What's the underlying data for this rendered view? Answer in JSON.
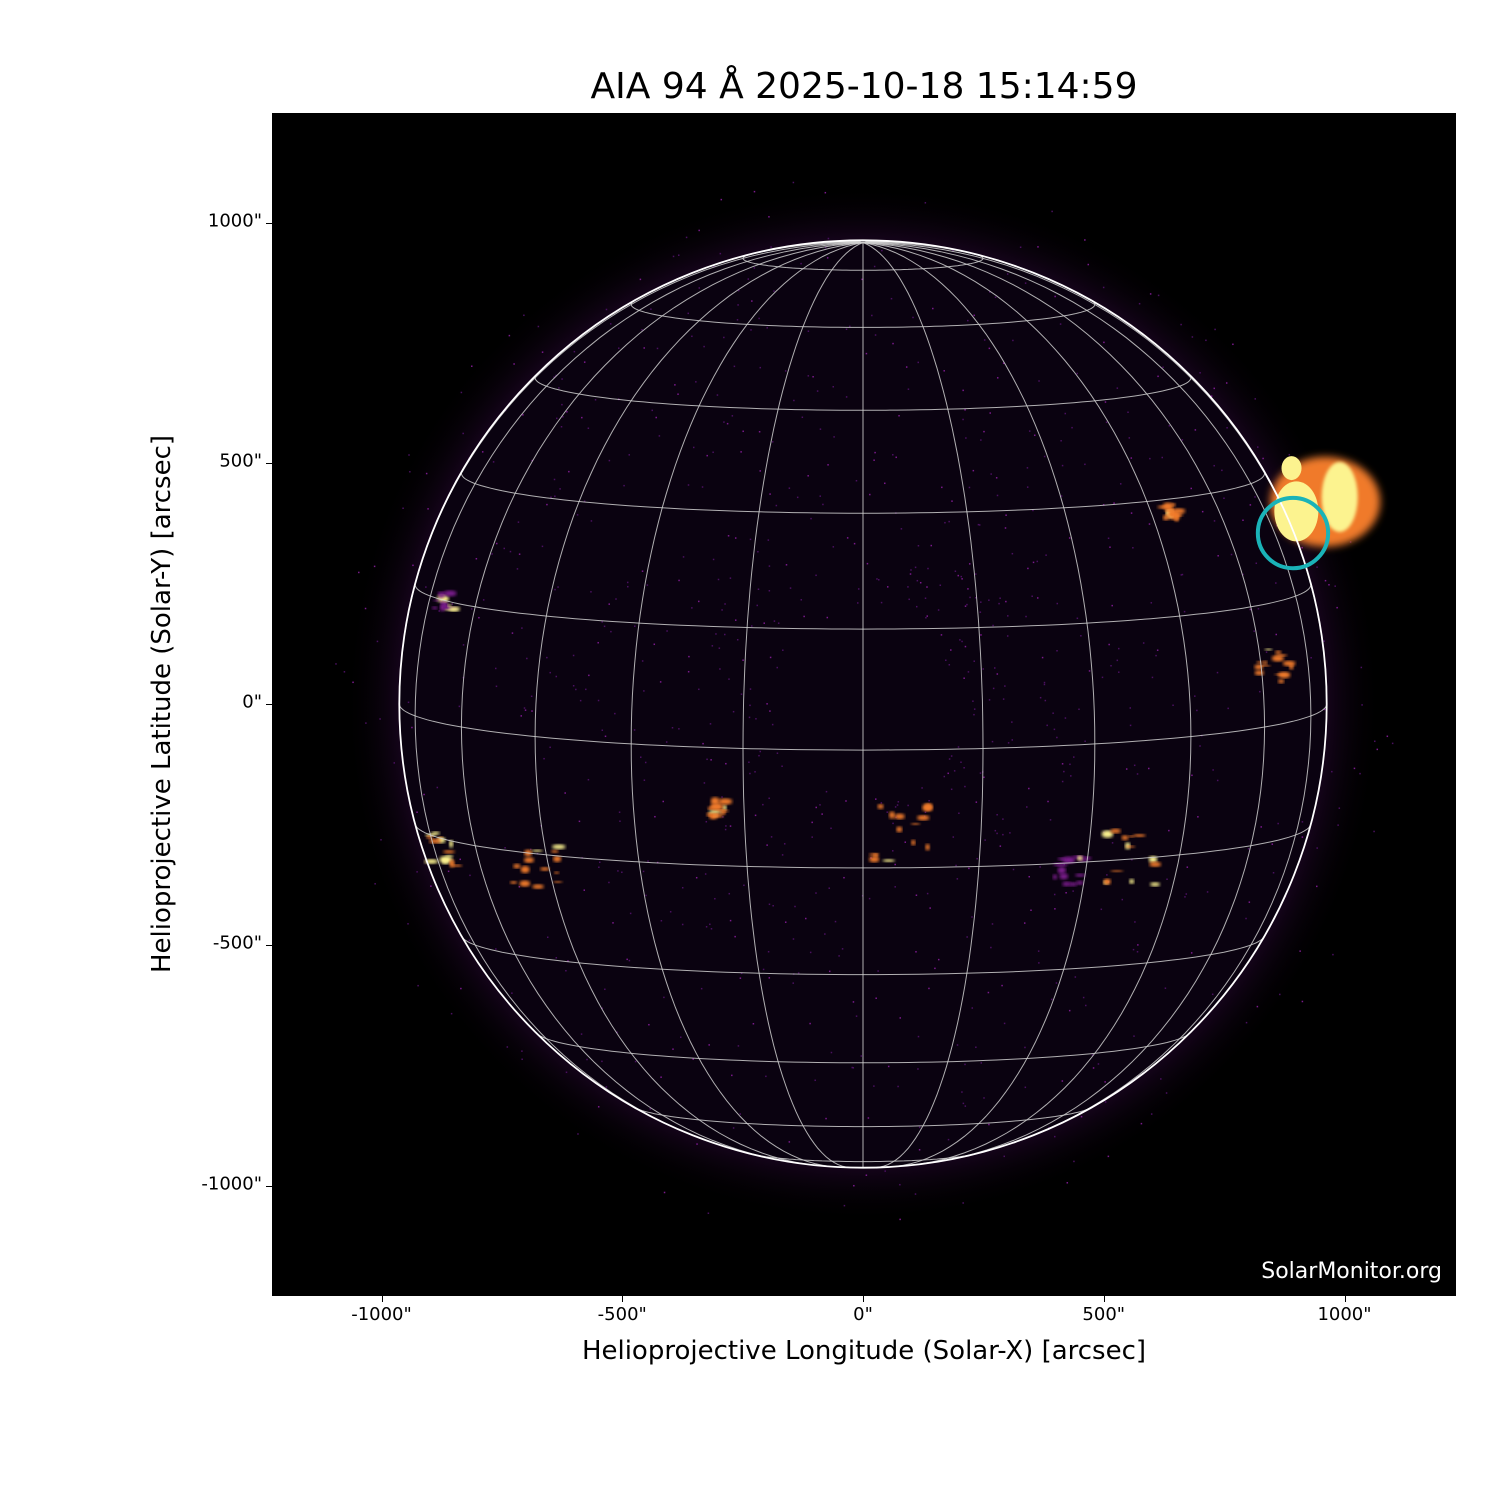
{
  "title": "AIA 94 Å 2025-10-18 15:14:59",
  "watermark": "SolarMonitor.org",
  "x_axis": {
    "label": "Helioprojective Longitude (Solar-X) [arcsec]",
    "ticks": [
      "-1000\"",
      "-500\"",
      "0\"",
      "500\"",
      "1000\""
    ],
    "tick_values": [
      -1000,
      -500,
      0,
      500,
      1000
    ],
    "range": [
      -1230,
      1230
    ]
  },
  "y_axis": {
    "label": "Helioprojective Latitude (Solar-Y) [arcsec]",
    "ticks": [
      "1000\"",
      "500\"",
      "0\"",
      "-500\"",
      "-1000\""
    ],
    "tick_values": [
      1000,
      500,
      0,
      -500,
      -1000
    ],
    "range": [
      -1230,
      1230
    ]
  },
  "solar_radius_arcsec": 963,
  "grid_spacing_deg": 15,
  "highlight_circle": {
    "center_arcsec": [
      893,
      355
    ],
    "radius_arcsec": 73,
    "color": "#1ab3b8"
  },
  "colors": {
    "background": "#000000",
    "grid": "#cfcfcf",
    "limb": "#ffffff",
    "emission_low": "#7a1a8c",
    "emission_mid": "#f07a2a",
    "emission_high": "#fcf38f"
  }
}
